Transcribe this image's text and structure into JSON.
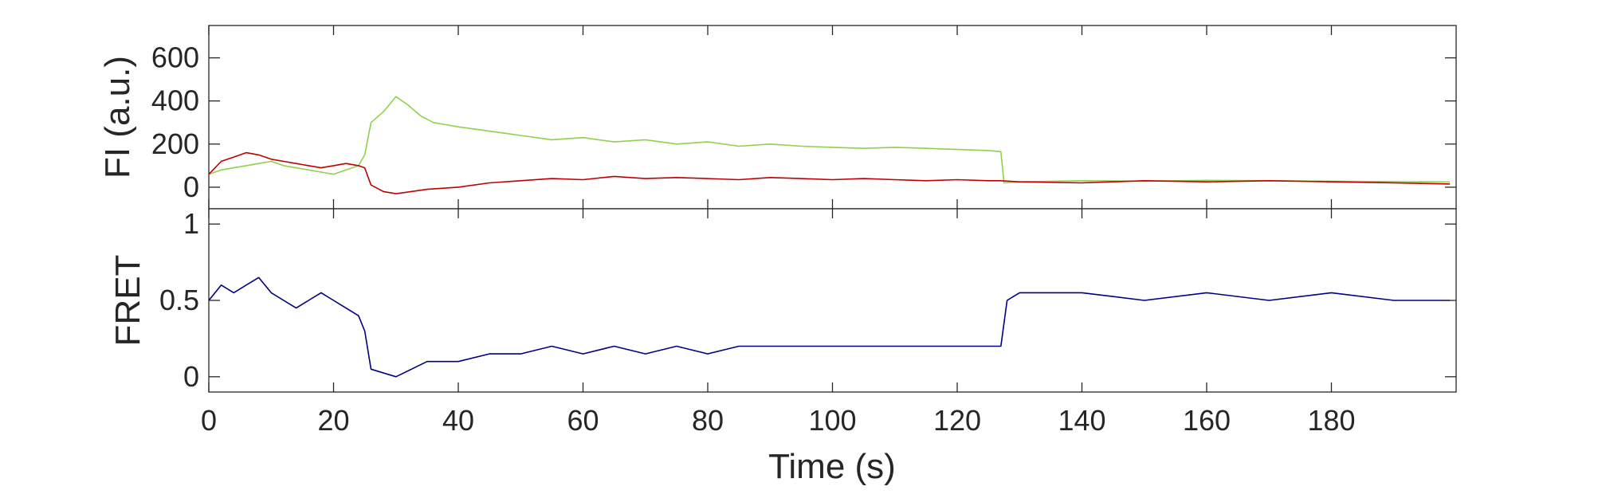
{
  "chart_data": [
    {
      "type": "line",
      "ylabel": "FI (a.u.)",
      "xlim": [
        0,
        200
      ],
      "ylim": [
        -100,
        750
      ],
      "yticks": [
        0,
        200,
        400,
        600
      ],
      "yticklabels": [
        "0",
        "200",
        "400",
        "600"
      ],
      "grid": false,
      "series": [
        {
          "color": "#8fd14f",
          "x": [
            0,
            2,
            4,
            6,
            8,
            10,
            12,
            14,
            16,
            18,
            20,
            22,
            24,
            25,
            26,
            28,
            30,
            32,
            34,
            36,
            38,
            40,
            45,
            50,
            55,
            60,
            65,
            70,
            75,
            80,
            85,
            90,
            95,
            100,
            105,
            110,
            115,
            120,
            125,
            127,
            127.5,
            130,
            140,
            150,
            160,
            170,
            180,
            190,
            199
          ],
          "values": [
            60,
            80,
            90,
            100,
            110,
            120,
            100,
            90,
            80,
            70,
            60,
            80,
            100,
            150,
            300,
            350,
            420,
            380,
            330,
            300,
            290,
            280,
            260,
            240,
            220,
            230,
            210,
            220,
            200,
            210,
            190,
            200,
            190,
            185,
            180,
            185,
            180,
            175,
            170,
            165,
            20,
            25,
            30,
            28,
            32,
            30,
            28,
            26,
            24
          ]
        },
        {
          "color": "#c00000",
          "x": [
            0,
            2,
            4,
            6,
            8,
            10,
            12,
            14,
            16,
            18,
            20,
            22,
            24,
            25,
            26,
            28,
            30,
            35,
            40,
            45,
            50,
            55,
            60,
            65,
            70,
            75,
            80,
            85,
            90,
            95,
            100,
            105,
            110,
            115,
            120,
            125,
            127,
            130,
            140,
            150,
            160,
            170,
            180,
            190,
            199
          ],
          "values": [
            60,
            120,
            140,
            160,
            150,
            130,
            120,
            110,
            100,
            90,
            100,
            110,
            100,
            90,
            10,
            -20,
            -30,
            -10,
            0,
            20,
            30,
            40,
            35,
            50,
            40,
            45,
            40,
            35,
            45,
            40,
            35,
            40,
            35,
            30,
            35,
            30,
            30,
            25,
            20,
            30,
            25,
            30,
            25,
            20,
            15
          ]
        }
      ]
    },
    {
      "type": "line",
      "xlabel": "Time (s)",
      "ylabel": "FRET",
      "xlim": [
        0,
        200
      ],
      "ylim": [
        -0.1,
        1.1
      ],
      "xticks": [
        0,
        20,
        40,
        60,
        80,
        100,
        120,
        140,
        160,
        180
      ],
      "xticklabels": [
        "0",
        "20",
        "40",
        "60",
        "80",
        "100",
        "120",
        "140",
        "160",
        "180"
      ],
      "yticks": [
        0,
        0.5,
        1
      ],
      "yticklabels": [
        "0",
        "0.5",
        "1"
      ],
      "grid": false,
      "series": [
        {
          "color": "#000080",
          "x": [
            0,
            2,
            4,
            6,
            8,
            10,
            12,
            14,
            16,
            18,
            20,
            22,
            24,
            25,
            26,
            30,
            35,
            40,
            45,
            50,
            55,
            60,
            65,
            70,
            75,
            80,
            85,
            90,
            95,
            100,
            105,
            110,
            115,
            120,
            125,
            127,
            128,
            130,
            140,
            150,
            160,
            170,
            180,
            190,
            199
          ],
          "values": [
            0.5,
            0.6,
            0.55,
            0.6,
            0.65,
            0.55,
            0.5,
            0.45,
            0.5,
            0.55,
            0.5,
            0.45,
            0.4,
            0.3,
            0.05,
            0.0,
            0.1,
            0.1,
            0.15,
            0.15,
            0.2,
            0.15,
            0.2,
            0.15,
            0.2,
            0.15,
            0.2,
            0.2,
            0.2,
            0.2,
            0.2,
            0.2,
            0.2,
            0.2,
            0.2,
            0.2,
            0.5,
            0.55,
            0.55,
            0.5,
            0.55,
            0.5,
            0.55,
            0.5,
            0.5
          ]
        }
      ]
    }
  ]
}
